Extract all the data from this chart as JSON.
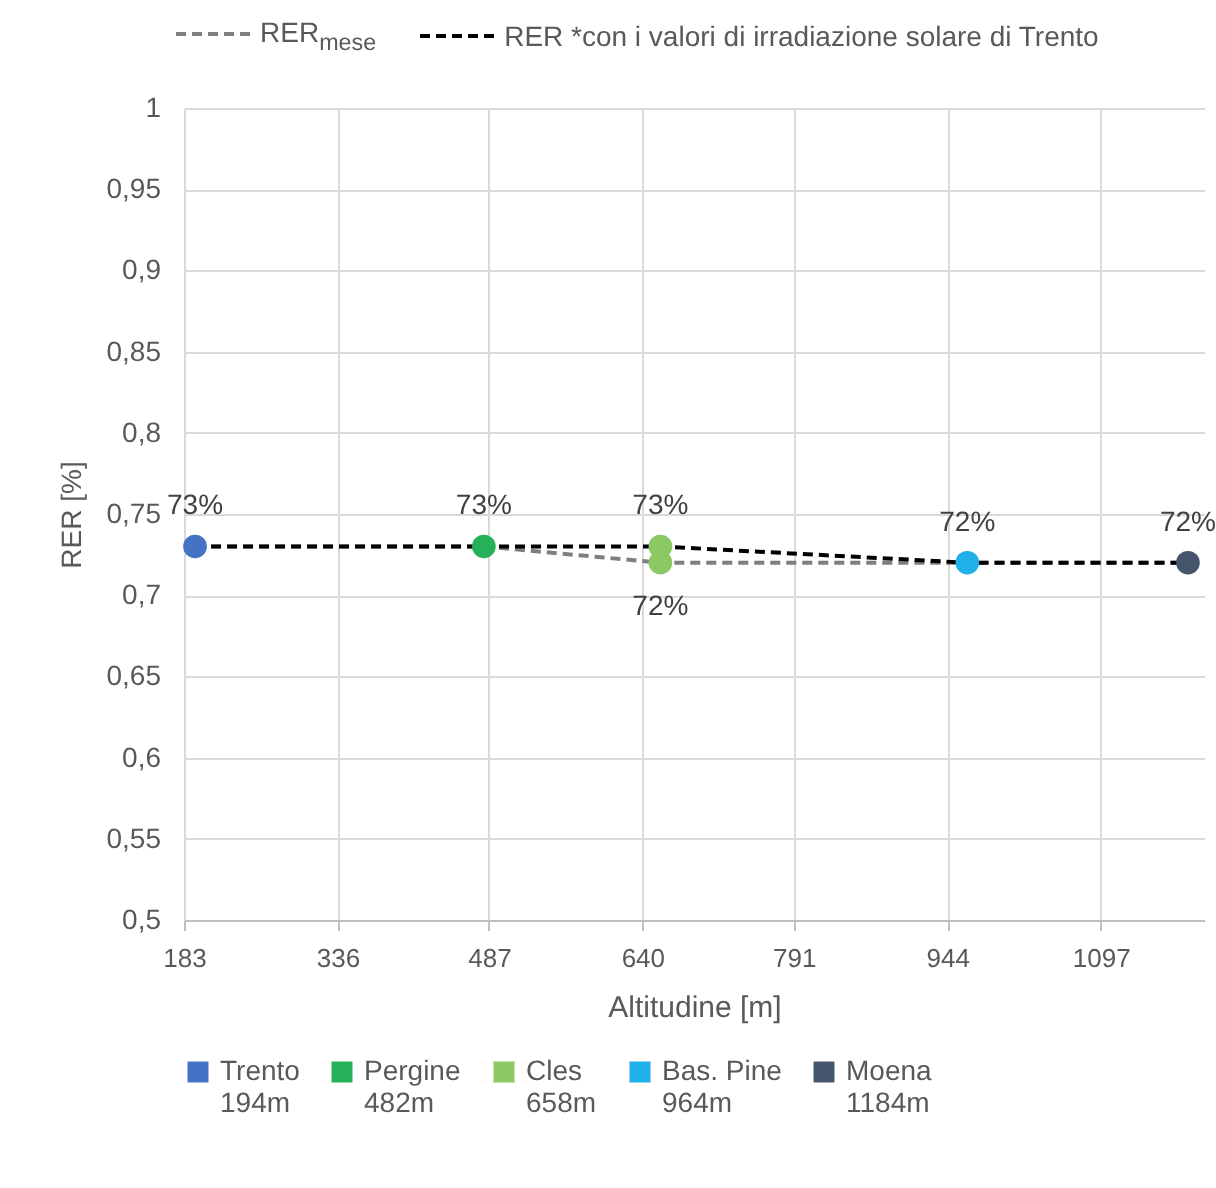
{
  "chart_data": {
    "type": "scatter",
    "xlabel": "Altitudine [m]",
    "ylabel": "RER [%]",
    "xlim": [
      183,
      1200
    ],
    "xticks": [
      183,
      336,
      487,
      640,
      791,
      944,
      1097
    ],
    "ylim": [
      0.5,
      1
    ],
    "yticks": [
      {
        "value": 0.5,
        "label": "0,5"
      },
      {
        "value": 0.55,
        "label": "0,55"
      },
      {
        "value": 0.6,
        "label": "0,6"
      },
      {
        "value": 0.65,
        "label": "0,65"
      },
      {
        "value": 0.7,
        "label": "0,7"
      },
      {
        "value": 0.75,
        "label": "0,75"
      },
      {
        "value": 0.8,
        "label": "0,8"
      },
      {
        "value": 0.85,
        "label": "0,85"
      },
      {
        "value": 0.9,
        "label": "0,9"
      },
      {
        "value": 0.95,
        "label": "0,95"
      },
      {
        "value": 1,
        "label": "1"
      }
    ],
    "grid": true,
    "legend": "bottom",
    "marker": "circle",
    "series": [
      {
        "name": "RER$_{mese}$",
        "type": "line",
        "marker": "none",
        "line_style": "dashed",
        "color": "#7f7f7f",
        "x": [
          194,
          482,
          658,
          964,
          1184
        ],
        "values": [
          0.73,
          0.73,
          0.72,
          0.72,
          0.72
        ]
      },
      {
        "name": "RER *con i valori di irradiazione solare di Trento",
        "type": "line",
        "marker": "none",
        "line_style": "dashed",
        "color": "#000000",
        "x": [
          194,
          482,
          658,
          964,
          1184
        ],
        "values": [
          0.73,
          0.73,
          0.73,
          0.72,
          0.72
        ]
      },
      {
        "name": "Trento 194m",
        "color": "#4472c4",
        "x": [
          194
        ],
        "values": [
          0.73
        ],
        "value_labels": [
          "73%"
        ]
      },
      {
        "name": "Pergine 482m",
        "color": "#27b05a",
        "x": [
          482
        ],
        "values": [
          0.73
        ],
        "value_labels": [
          "73%"
        ]
      },
      {
        "name": "Cles 658m",
        "color": "#8cc864",
        "x": [
          658,
          658
        ],
        "values": [
          0.73,
          0.72
        ],
        "value_labels": [
          "73%",
          "72%"
        ]
      },
      {
        "name": "Bas. Pine 964m",
        "color": "#1fb0e8",
        "x": [
          964
        ],
        "values": [
          0.72
        ],
        "value_labels": [
          "72%"
        ]
      },
      {
        "name": "Moena 1184m",
        "color": "#44546a",
        "x": [
          1184
        ],
        "values": [
          0.72
        ],
        "value_labels": [
          "72%"
        ]
      }
    ]
  }
}
